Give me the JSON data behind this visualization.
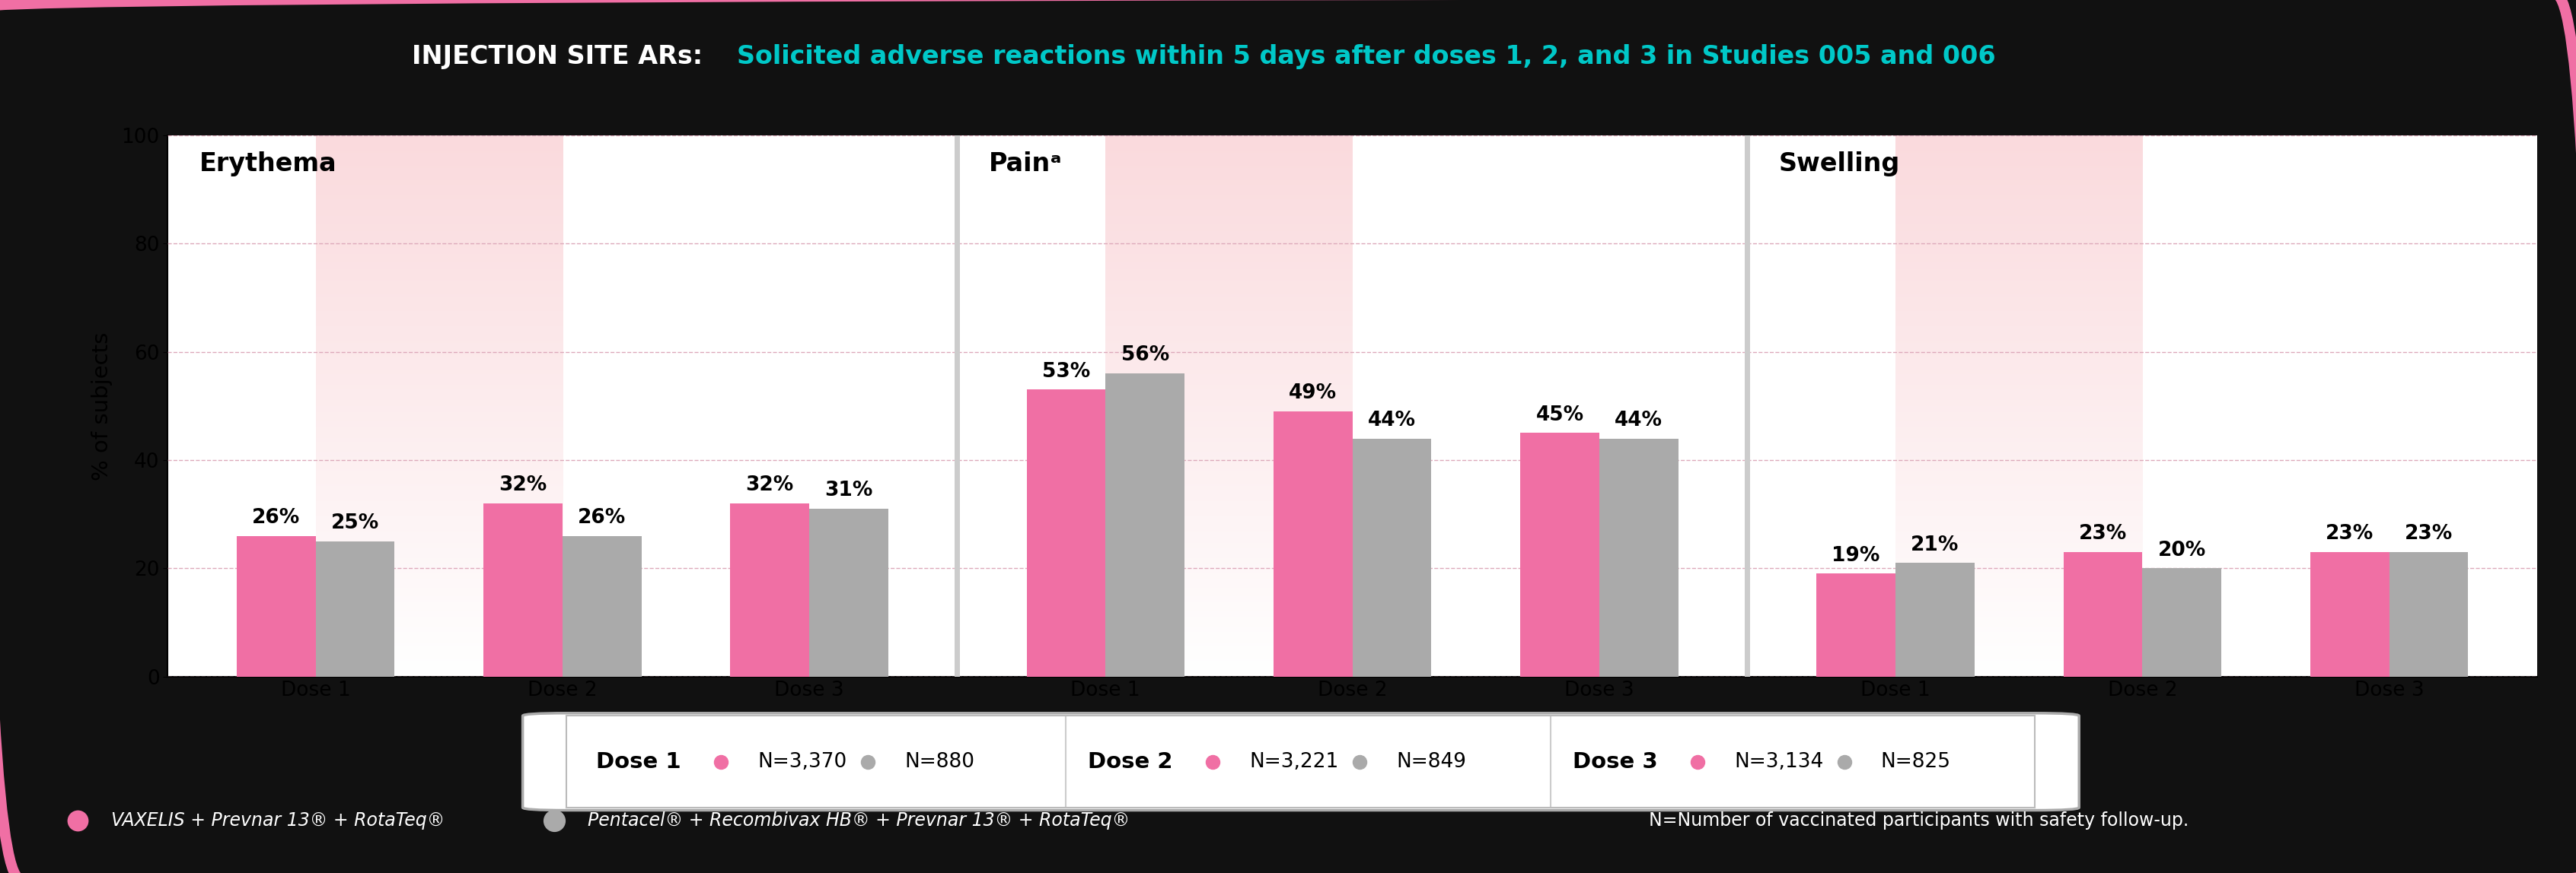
{
  "title_black": "INJECTION SITE ARs: ",
  "title_teal": "Solicited adverse reactions within 5 days after doses 1, 2, and 3 in Studies 005 and 006",
  "sections": [
    "Erythema",
    "Painᵃ",
    "Swelling"
  ],
  "dose_labels": [
    "Dose 1",
    "Dose 2",
    "Dose 3"
  ],
  "vaxelis_color": "#F06FA4",
  "comparator_color": "#AAAAAA",
  "bar_width": 0.32,
  "background_color": "#111111",
  "plot_bg_top": "#FADADD",
  "plot_bg_bottom": "#FFFFFF",
  "data": {
    "Erythema": {
      "vaxelis": [
        26,
        32,
        32
      ],
      "comparator": [
        25,
        26,
        31
      ]
    },
    "Pain": {
      "vaxelis": [
        53,
        49,
        45
      ],
      "comparator": [
        56,
        44,
        44
      ]
    },
    "Swelling": {
      "vaxelis": [
        19,
        23,
        23
      ],
      "comparator": [
        21,
        20,
        23
      ]
    }
  },
  "dose1_n_vaxelis": "N=3,370",
  "dose1_n_comp": "N=880",
  "dose2_n_vaxelis": "N=3,221",
  "dose2_n_comp": "N=849",
  "dose3_n_vaxelis": "N=3,134",
  "dose3_n_comp": "N=825",
  "ylabel": "% of subjects",
  "ylim": [
    0,
    100
  ],
  "yticks": [
    0,
    20,
    40,
    60,
    80,
    100
  ],
  "footer_vaxelis": "VAXELIS + Prevnar 13® + RotaTeq®",
  "footer_comp": "Pentacel® + Recombivax HB® + Prevnar 13® + RotaTeq®",
  "footer_n": "N=Number of vaccinated participants with safety follow-up.",
  "outer_border_color": "#F06FA4",
  "title_color_white": "#FFFFFF",
  "title_color_teal": "#00C8C8",
  "grid_color": "#DDAABB",
  "divider_color": "#CCCCCC"
}
